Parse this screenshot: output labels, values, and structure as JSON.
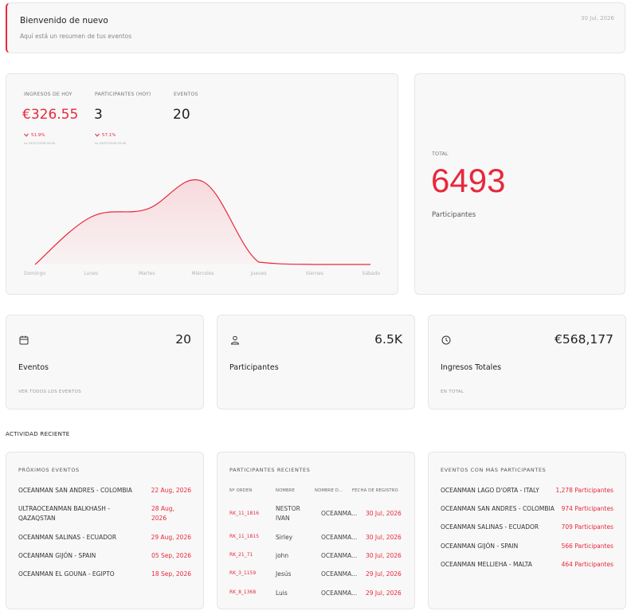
{
  "welcome": {
    "title": "Bienvenido de nuevo",
    "subtitle": "Aquí está un resumen de tus eventos",
    "date": "30 Jul, 2026"
  },
  "stats": {
    "income_label": "INGRESOS DE HOY",
    "income_value": "€326.55",
    "income_delta": "51.9%",
    "income_vs": "vs 29/07/2026 05:00",
    "participants_label": "PARTICIPANTES (HOY)",
    "participants_value": "3",
    "participants_delta": "57.1%",
    "participants_vs": "vs 29/07/2026 05:00",
    "events_label": "EVENTOS",
    "events_value": "20"
  },
  "chart_data": {
    "type": "area",
    "categories": [
      "Domingo",
      "Lunes",
      "Martes",
      "Miércoles",
      "Jueves",
      "Viernes",
      "Sábado"
    ],
    "values": [
      0,
      60,
      70,
      105,
      3,
      0,
      0
    ],
    "ylim": [
      0,
      120
    ],
    "grid": false,
    "colors": {
      "line": "#e8283c",
      "fill": "#f7d6da"
    }
  },
  "total": {
    "label": "TOTAL",
    "value": "6493",
    "caption": "Participantes"
  },
  "summary": [
    {
      "icon": "calendar-icon",
      "value": "20",
      "name": "Eventos",
      "link": "VER TODOS LOS EVENTOS"
    },
    {
      "icon": "person-icon",
      "value": "6.5K",
      "name": "Participantes",
      "link": ""
    },
    {
      "icon": "clock-icon",
      "value": "€568,177",
      "name": "Ingresos Totales",
      "link": "EN TOTAL"
    }
  ],
  "activity_heading": "ACTIVIDAD RECIENTE",
  "upcoming": {
    "title": "PRÓXIMOS EVENTOS",
    "items": [
      {
        "name": "OCEANMAN SAN ANDRES - COLOMBIA",
        "date": "22 Aug, 2026"
      },
      {
        "name": "ULTRAOCEANMAN BALKHASH - QAZAQSTAN",
        "date": "28 Aug, 2026"
      },
      {
        "name": "OCEANMAN SALINAS - ECUADOR",
        "date": "29 Aug, 2026"
      },
      {
        "name": "OCEANMAN GIJÓN - SPAIN",
        "date": "05 Sep, 2026"
      },
      {
        "name": "OCEANMAN EL GOUNA - EGIPTO",
        "date": "18 Sep, 2026"
      }
    ]
  },
  "recent": {
    "title": "PARTICIPANTES RECIENTES",
    "columns": [
      "Nº ORDEN",
      "NOMBRE",
      "NOMBRE D...",
      "FECHA DE REGISTRO"
    ],
    "rows": [
      {
        "order": "RK_11_1816",
        "name": "NESTOR IVAN",
        "event": "OCEANMA...",
        "date": "30 Jul, 2026"
      },
      {
        "order": "RK_11_1815",
        "name": "Sirley",
        "event": "OCEANMA...",
        "date": "30 Jul, 2026"
      },
      {
        "order": "RK_21_71",
        "name": "john",
        "event": "OCEANMA...",
        "date": "30 Jul, 2026"
      },
      {
        "order": "RK_3_1159",
        "name": "Jesús",
        "event": "OCEANMA...",
        "date": "29 Jul, 2026"
      },
      {
        "order": "RK_8_1368",
        "name": "Luis",
        "event": "OCEANMA...",
        "date": "29 Jul, 2026"
      }
    ]
  },
  "top": {
    "title": "EVENTOS CON MÁS PARTICIPANTES",
    "items": [
      {
        "name": "OCEANMAN LAGO D'ORTA - ITALY",
        "count": "1,278 Participantes"
      },
      {
        "name": "OCEANMAN SAN ANDRES - COLOMBIA",
        "count": "974 Participantes"
      },
      {
        "name": "OCEANMAN SALINAS - ECUADOR",
        "count": "709 Participantes"
      },
      {
        "name": "OCEANMAN GIJÓN - SPAIN",
        "count": "566 Participantes"
      },
      {
        "name": "OCEANMAN MELLIEHA - MALTA",
        "count": "464 Participantes"
      }
    ]
  }
}
